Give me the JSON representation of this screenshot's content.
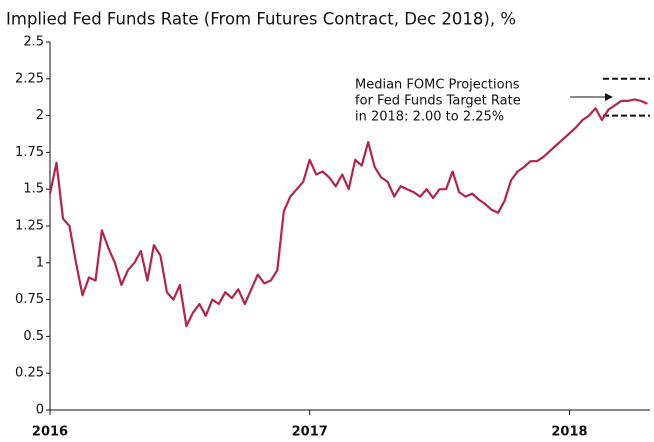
{
  "chart_data": {
    "type": "line",
    "title": "Implied Fed Funds Rate (From Futures Contract, Dec 2018), %",
    "x": [
      2016,
      2016.025,
      2016.05,
      2016.075,
      2016.1,
      2016.125,
      2016.15,
      2016.175,
      2016.2,
      2016.225,
      2016.25,
      2016.275,
      2016.3,
      2016.325,
      2016.35,
      2016.375,
      2016.4,
      2016.425,
      2016.45,
      2016.475,
      2016.5,
      2016.525,
      2016.55,
      2016.575,
      2016.6,
      2016.625,
      2016.65,
      2016.675,
      2016.7,
      2016.725,
      2016.75,
      2016.775,
      2016.8,
      2016.825,
      2016.85,
      2016.875,
      2016.9,
      2016.925,
      2016.95,
      2016.975,
      2017,
      2017.025,
      2017.05,
      2017.075,
      2017.1,
      2017.125,
      2017.15,
      2017.175,
      2017.2,
      2017.225,
      2017.25,
      2017.275,
      2017.3,
      2017.325,
      2017.35,
      2017.375,
      2017.4,
      2017.425,
      2017.45,
      2017.475,
      2017.5,
      2017.525,
      2017.55,
      2017.575,
      2017.6,
      2017.625,
      2017.65,
      2017.675,
      2017.7,
      2017.725,
      2017.75,
      2017.775,
      2017.8,
      2017.825,
      2017.85,
      2017.875,
      2017.9,
      2017.925,
      2017.95,
      2017.975,
      2018,
      2018.025,
      2018.05,
      2018.075,
      2018.1,
      2018.125,
      2018.15,
      2018.175,
      2018.2,
      2018.225,
      2018.25,
      2018.275,
      2018.3
    ],
    "series": [
      {
        "name": "Implied Fed Funds Rate",
        "color": "#b5234b",
        "values": [
          1.47,
          1.68,
          1.3,
          1.25,
          1.0,
          0.78,
          0.9,
          0.88,
          1.22,
          1.1,
          1.0,
          0.85,
          0.95,
          1.0,
          1.08,
          0.88,
          1.12,
          1.05,
          0.8,
          0.75,
          0.85,
          0.57,
          0.66,
          0.72,
          0.64,
          0.75,
          0.72,
          0.8,
          0.76,
          0.82,
          0.72,
          0.82,
          0.92,
          0.86,
          0.88,
          0.95,
          1.35,
          1.45,
          1.5,
          1.55,
          1.7,
          1.6,
          1.62,
          1.58,
          1.52,
          1.6,
          1.5,
          1.7,
          1.66,
          1.82,
          1.65,
          1.58,
          1.55,
          1.45,
          1.52,
          1.5,
          1.48,
          1.45,
          1.5,
          1.44,
          1.5,
          1.5,
          1.62,
          1.48,
          1.45,
          1.47,
          1.43,
          1.4,
          1.36,
          1.34,
          1.42,
          1.56,
          1.62,
          1.65,
          1.69,
          1.69,
          1.72,
          1.76,
          1.8,
          1.84,
          1.88,
          1.92,
          1.97,
          2.0,
          2.05,
          1.97,
          2.04,
          2.07,
          2.1,
          2.1,
          2.11,
          2.1,
          2.08
        ]
      }
    ],
    "xlim": [
      2016,
      2018.31
    ],
    "xticks": [
      2016,
      2017,
      2018
    ],
    "ylim": [
      0,
      2.5
    ],
    "yticks": [
      0,
      0.25,
      0.5,
      0.75,
      1,
      1.25,
      1.5,
      1.75,
      2,
      2.25,
      2.5
    ],
    "grid": false,
    "reference_lines": [
      2.25,
      2
    ],
    "annotation": [
      "Median FOMC Projections",
      "for Fed Funds Target Rate",
      "in 2018: 2.00 to 2.25%"
    ]
  }
}
